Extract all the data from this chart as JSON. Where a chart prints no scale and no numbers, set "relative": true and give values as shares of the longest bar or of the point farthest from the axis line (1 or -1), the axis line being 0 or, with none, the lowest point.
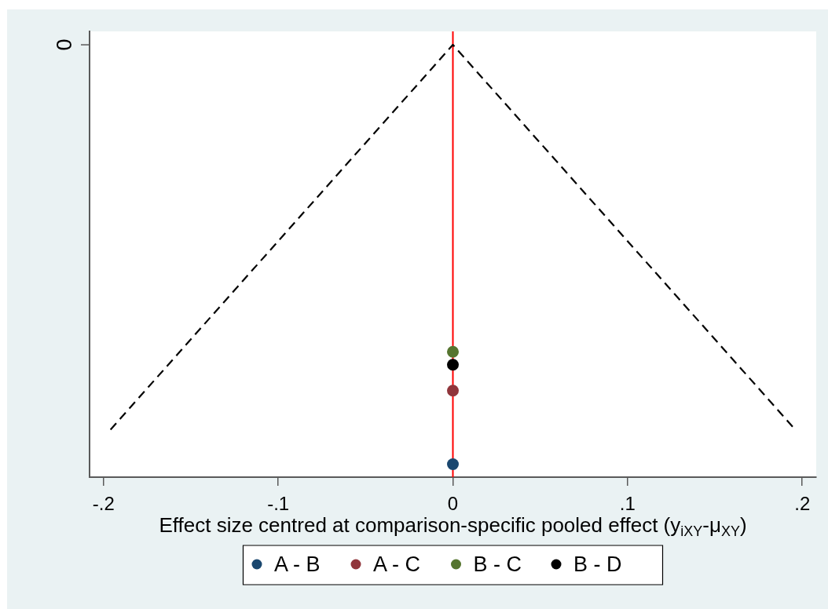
{
  "chart_data": {
    "type": "scatter",
    "xlabel": "Effect size centred at comparison-specific pooled effect (y$_{iXY}$-μ$_{XY}$)",
    "annotations": [
      "0"
    ],
    "relative": true,
    "xlim": [
      -0.208,
      0.208
    ],
    "xticks": [
      {
        "value": -0.2,
        "label": "-.2"
      },
      {
        "value": -0.1,
        "label": "-.1"
      },
      0,
      {
        "value": 0.1,
        "label": ".1"
      },
      {
        "value": 0.2,
        "label": ".2"
      }
    ],
    "legend": "bottom",
    "marker": "circle",
    "ref_lines": [
      {
        "axis": "x",
        "value": 0,
        "color": "#ff0000"
      }
    ],
    "series": [
      {
        "type": "line",
        "color": "#000000",
        "line_style": "dashed",
        "marker": "none",
        "x": [
          -0.196,
          0,
          0.196
        ],
        "values": [
          0.11,
          1,
          0.11
        ]
      },
      {
        "name": "A - B",
        "color": "#1a476f",
        "x": [
          0
        ],
        "values": [
          0.03
        ]
      },
      {
        "name": "A - C",
        "color": "#90353b",
        "x": [
          0
        ],
        "values": [
          0.2
        ]
      },
      {
        "name": "B - C",
        "color": "#55752f",
        "x": [
          0
        ],
        "values": [
          0.29
        ]
      },
      {
        "name": "B - D",
        "color": "#000000",
        "x": [
          0
        ],
        "values": [
          0.26
        ]
      }
    ]
  }
}
